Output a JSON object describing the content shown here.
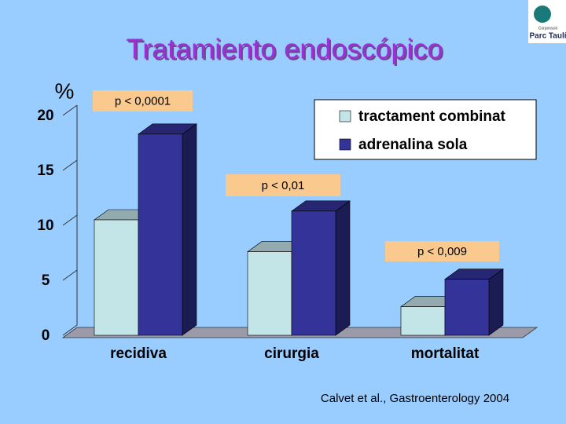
{
  "chart_data": {
    "type": "bar3d",
    "title": "Tratamiento endoscópico",
    "ylabel": "%",
    "categories": [
      "recidiva",
      "cirurgia",
      "mortalitat"
    ],
    "series": [
      {
        "name": "tractament combinat",
        "color": "#c4e5e8",
        "values": [
          10.5,
          7.6,
          2.6
        ]
      },
      {
        "name": "adrenalina sola",
        "color": "#333399",
        "values": [
          18.3,
          11.3,
          5.1
        ]
      }
    ],
    "ylim": [
      0,
      20
    ],
    "yticks": [
      0,
      5,
      10,
      15,
      20
    ],
    "annotations": [
      "p < 0,0001",
      "p < 0,01",
      "p < 0,009"
    ],
    "source": "Calvet et al., Gastroenterology 2004"
  },
  "logo": {
    "line1": "Corporació",
    "line2": "Parc Taulí"
  }
}
